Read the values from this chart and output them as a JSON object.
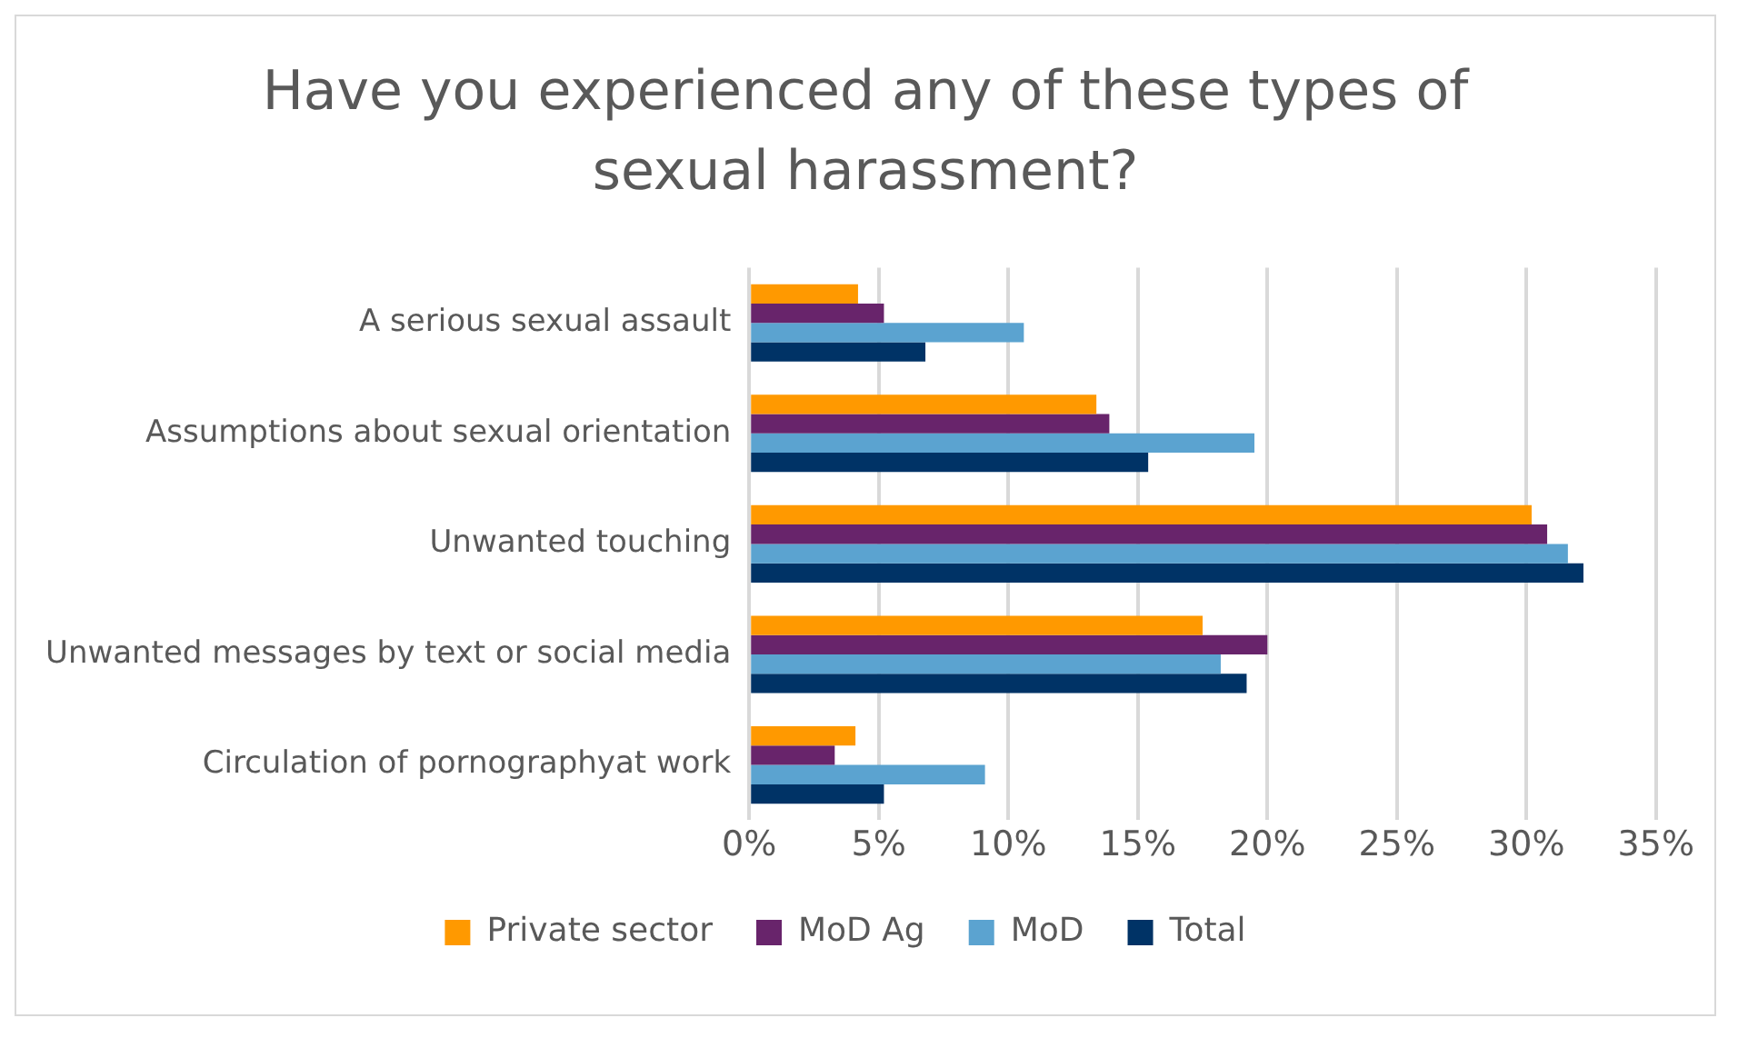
{
  "chart_data": {
    "type": "bar",
    "orientation": "horizontal",
    "title": "Have you experienced any of these types of sexual harassment?",
    "categories": [
      "A serious sexual assault",
      "Assumptions about sexual orientation",
      "Unwanted touching",
      "Unwanted messages by text or social media",
      "Circulation of pornographyat work"
    ],
    "series": [
      {
        "name": "Private sector",
        "color": "#ff9900",
        "values": [
          4.2,
          13.4,
          30.2,
          17.5,
          4.1
        ]
      },
      {
        "name": "MoD Ag",
        "color": "#68246b",
        "values": [
          5.2,
          13.9,
          30.8,
          20.0,
          3.3
        ]
      },
      {
        "name": "MoD",
        "color": "#5ba3d0",
        "values": [
          10.6,
          19.5,
          31.6,
          18.2,
          9.1
        ]
      },
      {
        "name": "Total",
        "color": "#003366",
        "values": [
          6.8,
          15.4,
          32.2,
          19.2,
          5.2
        ]
      }
    ],
    "xlim": [
      0,
      35
    ],
    "xticks": [
      {
        "value": 0,
        "label": "0%"
      },
      {
        "value": 5,
        "label": "5%"
      },
      {
        "value": 10,
        "label": "10%"
      },
      {
        "value": 15,
        "label": "15%"
      },
      {
        "value": 20,
        "label": "20%"
      },
      {
        "value": 25,
        "label": "25%"
      },
      {
        "value": 30,
        "label": "30%"
      },
      {
        "value": 35,
        "label": "35%"
      }
    ],
    "grid": "x",
    "legend": "bottom"
  }
}
